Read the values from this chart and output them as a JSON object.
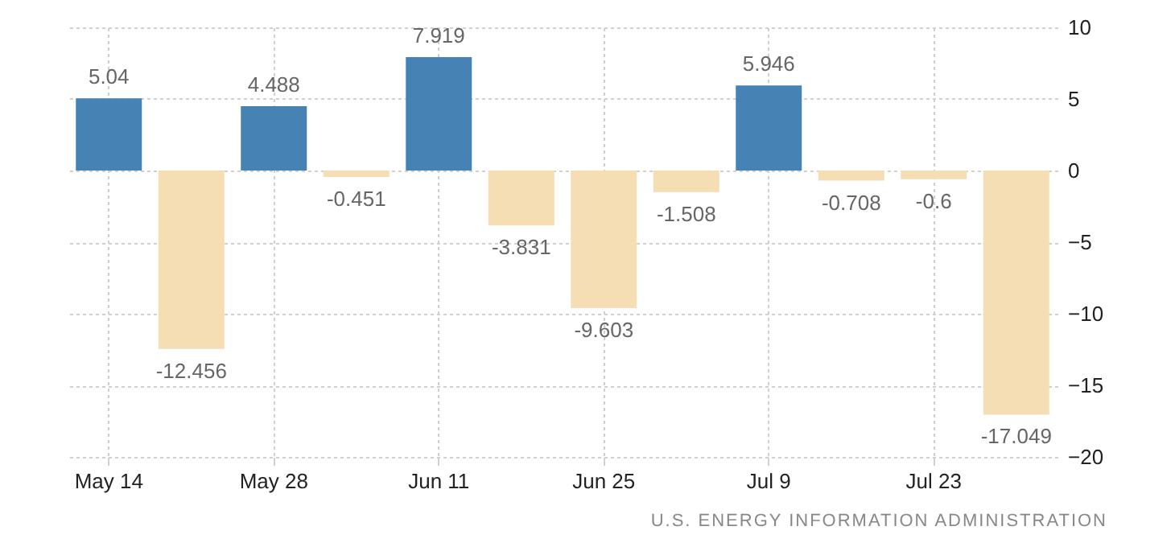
{
  "chart_data": {
    "type": "bar",
    "categories": [
      "May 14",
      null,
      "May 28",
      null,
      "Jun 11",
      null,
      "Jun 25",
      null,
      "Jul 9",
      null,
      "Jul 23",
      null
    ],
    "values": [
      5.04,
      -12.456,
      4.488,
      -0.451,
      7.919,
      -3.831,
      -9.603,
      -1.508,
      5.946,
      -0.708,
      -0.6,
      -17.049
    ],
    "colors": [
      "#4682b4",
      "#f5deb3",
      "#4682b4",
      "#f5deb3",
      "#4682b4",
      "#f5deb3",
      "#f5deb3",
      "#f5deb3",
      "#4682b4",
      "#f5deb3",
      "#f5deb3",
      "#f5deb3"
    ],
    "ylim": [
      -20,
      10
    ],
    "yticks": [
      10,
      5,
      0,
      -5,
      -10,
      -15,
      -20
    ],
    "grid": true,
    "data_labels": true,
    "annotations": [
      "U.S. ENERGY INFORMATION ADMINISTRATION"
    ]
  }
}
